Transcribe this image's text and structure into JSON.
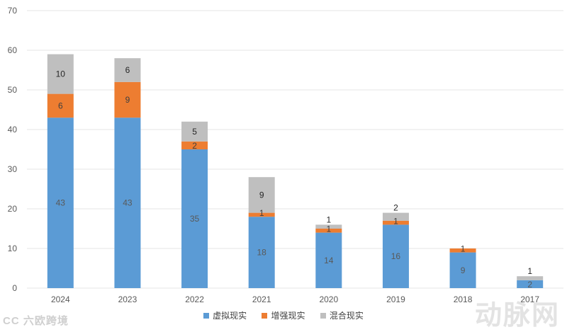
{
  "chart_data": {
    "type": "bar",
    "stacked": true,
    "categories": [
      "2024",
      "2023",
      "2022",
      "2021",
      "2020",
      "2019",
      "2018",
      "2017"
    ],
    "series": [
      {
        "name": "虚拟现实",
        "values": [
          43,
          43,
          35,
          18,
          14,
          16,
          9,
          2
        ],
        "color": "#5b9bd5",
        "label_color": "#595959"
      },
      {
        "name": "增强现实",
        "values": [
          6,
          9,
          2,
          1,
          1,
          1,
          1,
          0
        ],
        "color": "#ed7d31",
        "label_color": "#404040"
      },
      {
        "name": "混合现实",
        "values": [
          10,
          6,
          5,
          9,
          1,
          2,
          0,
          1
        ],
        "color": "#bfbfbf",
        "label_color": "#262626"
      }
    ],
    "yticks": [
      0,
      10,
      20,
      30,
      40,
      50,
      60,
      70
    ],
    "ylim": [
      0,
      70
    ],
    "title": "",
    "xlabel": "",
    "ylabel": "",
    "legend_position": "bottom"
  },
  "watermarks": {
    "left": "CC 六欧跨境",
    "right": "动脉网"
  }
}
